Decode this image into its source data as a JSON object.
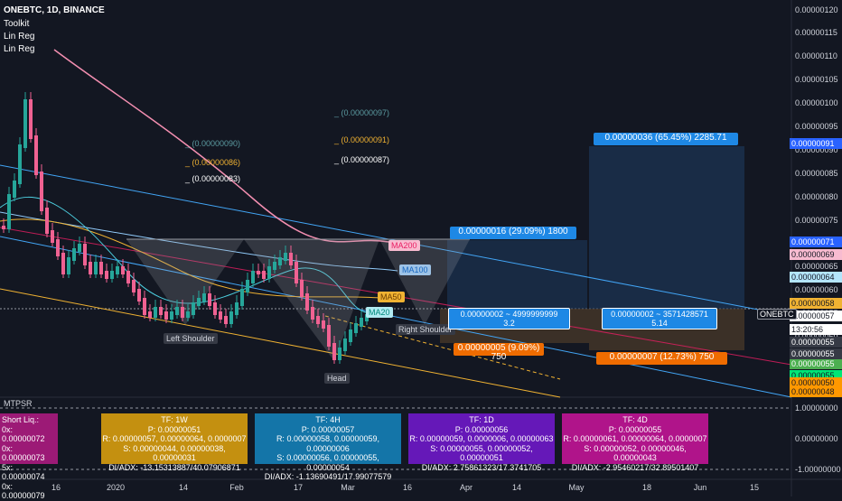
{
  "header": {
    "symbol": "ONEBTC, 1D, BINANCE",
    "indicators": [
      "Toolkit",
      "Lin Reg",
      "Lin Reg"
    ]
  },
  "price_axis": {
    "ticks": [
      "0.00000120",
      "0.00000115",
      "0.00000110",
      "0.00000105",
      "0.00000100",
      "0.00000095",
      "0.00000090",
      "0.00000085",
      "0.00000080",
      "0.00000075",
      "0.00000070",
      "0.00000065",
      "0.00000060",
      "0.00000055",
      "0.00000050"
    ],
    "tags": [
      {
        "text": "0.00000091",
        "bg": "#2962ff",
        "fg": "#ffffff"
      },
      {
        "text": "0.00000071",
        "bg": "#2962ff",
        "fg": "#ffffff"
      },
      {
        "text": "0.00000069",
        "bg": "#f8bbd0",
        "fg": "#131722"
      },
      {
        "text": "0.00000064",
        "bg": "#b3e5fc",
        "fg": "#131722"
      },
      {
        "text": "0.00000058",
        "bg": "#f0b232",
        "fg": "#131722"
      },
      {
        "text": "0.00000057",
        "bg": "#ffffff",
        "fg": "#131722"
      },
      {
        "text": "13:20:56",
        "bg": "#ffffff",
        "fg": "#131722"
      },
      {
        "text": "0.00000055",
        "bg": "#4caf50",
        "fg": "#ffffff"
      },
      {
        "text": "0.00000055",
        "bg": "#00e676",
        "fg": "#131722"
      },
      {
        "text": "0.00000050",
        "bg": "#ff9800",
        "fg": "#131722"
      },
      {
        "text": "0.00000048",
        "bg": "#ff9800",
        "fg": "#131722"
      }
    ],
    "grey_tags": [
      "0.00000055",
      "0.00000055"
    ],
    "symbol_label": "ONEBTC"
  },
  "osc_axis": {
    "ticks": [
      "1.00000000",
      "0.00000000",
      "-1.00000000"
    ],
    "title": "MTPSR"
  },
  "time_axis": [
    "16",
    "2020",
    "14",
    "Feb",
    "17",
    "Mar",
    "16",
    "Apr",
    "14",
    "May",
    "18",
    "Jun",
    "15"
  ],
  "levels_left": [
    {
      "text": "_ (0.00000090)",
      "color": "#5b9aa0"
    },
    {
      "text": "_ (0.00000086)",
      "color": "#f0b232"
    },
    {
      "text": "_ (0.00000083)",
      "color": "#ffffff"
    }
  ],
  "levels_right": [
    {
      "text": "_ (0.00000097)",
      "color": "#5b9aa0"
    },
    {
      "text": "_ (0.00000091)",
      "color": "#f0b232"
    },
    {
      "text": "_ (0.00000087)",
      "color": "#ffffff"
    }
  ],
  "ma_tags": [
    {
      "text": "MA200",
      "bg": "#f8bbd0",
      "fg": "#e91e63"
    },
    {
      "text": "MA100",
      "bg": "#9ec3e6",
      "fg": "#1565c0"
    },
    {
      "text": "MA50",
      "bg": "#f0b232",
      "fg": "#6b3c00"
    },
    {
      "text": "MA20",
      "bg": "#b2ebf2",
      "fg": "#00897b"
    }
  ],
  "pattern_labels": [
    "Left Shoulder",
    "Head",
    "Right Shoulder"
  ],
  "targets": [
    {
      "text": "0.00000036 (65.45%) 2285.71",
      "bg": "#1e88e5"
    },
    {
      "text": "0.00000016 (29.09%) 1800",
      "bg": "#1e88e5"
    },
    {
      "text": "0.00000005 (9.09%) 750",
      "bg": "#ef6c00"
    },
    {
      "text": "0.00000007 (12.73%) 750",
      "bg": "#ef6c00"
    }
  ],
  "rr_boxes": [
    {
      "line1": "0.00000002 ~ 4999999999",
      "line2": "3.2"
    },
    {
      "line1": "0.00000002 ~ 3571428571",
      "line2": "5.14"
    }
  ],
  "liq_box": {
    "title": "Short Liq.:",
    "lines": [
      "0x: 0.00000072",
      "0x: 0.00000073",
      "5x: 0.00000074",
      "0x: 0.00000079"
    ],
    "bg": "#9c1a76"
  },
  "tf_boxes": [
    {
      "tf": "TF: 1W",
      "p": "P: 0.00000051",
      "r": "R: 0.00000057, 0.00000064, 0.0000007",
      "s": "S: 0.00000044, 0.00000038, 0.00000031",
      "di": "DI/ADX: -13.15313887/40.07906871",
      "bg": "#c49010"
    },
    {
      "tf": "TF: 4H",
      "p": "P: 0.00000057",
      "r": "R: 0.00000058, 0.00000059, 0.00000006",
      "s": "S: 0.00000056, 0.00000055, 0.00000054",
      "di": "DI/ADX: -1.13690491/17.99077579",
      "bg": "#1475a8"
    },
    {
      "tf": "TF: 1D",
      "p": "P: 0.00000056",
      "r": "R: 0.00000059, 0.0000006, 0.00000063",
      "s": "S: 0.00000055, 0.00000052, 0.00000051",
      "di": "DI/ADX: 2.75861323/17.3741705",
      "bg": "#6518b8"
    },
    {
      "tf": "TF: 4D",
      "p": "P: 0.00000055",
      "r": "R: 0.00000061, 0.00000064, 0.0000007",
      "s": "S: 0.00000052, 0.00000046, 0.00000043",
      "di": "DI/ADX: -2.95460217/32.89501407",
      "bg": "#b0148a"
    }
  ]
}
